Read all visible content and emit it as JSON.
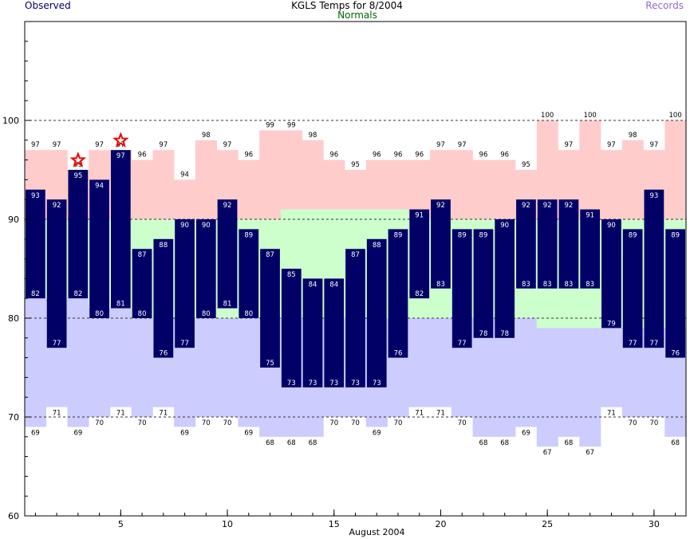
{
  "chart_data": {
    "type": "bar",
    "title": "KGLS Temps for 8/2004",
    "legend": {
      "observed": "Observed",
      "normals": "Normals",
      "records": "Records"
    },
    "xlabel": "August 2004",
    "ylim": [
      60,
      110
    ],
    "xlim": [
      0.5,
      31.5
    ],
    "y_ticks": [
      60,
      70,
      80,
      90,
      100
    ],
    "x_ticks": [
      5,
      10,
      15,
      20,
      25,
      30
    ],
    "dashed_gridlines": [
      70,
      80,
      90,
      100
    ],
    "colors": {
      "observed": "#000066",
      "normal_band": "#ccffcc",
      "record_high": "#ffcccc",
      "record_low": "#ccccff",
      "legend_observed": "#000066",
      "legend_normals": "#006600",
      "legend_records": "#9966cc",
      "record_star": "#ee0000"
    },
    "days": [
      1,
      2,
      3,
      4,
      5,
      6,
      7,
      8,
      9,
      10,
      11,
      12,
      13,
      14,
      15,
      16,
      17,
      18,
      19,
      20,
      21,
      22,
      23,
      24,
      25,
      26,
      27,
      28,
      29,
      30,
      31
    ],
    "series": [
      {
        "name": "observed_high",
        "values": [
          93,
          92,
          95,
          94,
          97,
          87,
          88,
          90,
          90,
          92,
          89,
          87,
          85,
          84,
          84,
          87,
          88,
          89,
          91,
          92,
          89,
          89,
          90,
          92,
          92,
          92,
          91,
          90,
          89,
          93,
          89
        ]
      },
      {
        "name": "observed_low",
        "values": [
          82,
          77,
          82,
          80,
          81,
          80,
          76,
          77,
          80,
          81,
          80,
          75,
          73,
          73,
          73,
          73,
          73,
          76,
          82,
          83,
          77,
          78,
          78,
          83,
          83,
          83,
          83,
          79,
          77,
          77,
          76
        ]
      },
      {
        "name": "normal_high",
        "values": [
          90,
          90,
          90,
          90,
          90,
          90,
          90,
          90,
          90,
          90,
          90,
          90,
          91,
          91,
          91,
          91,
          91,
          91,
          90,
          90,
          90,
          90,
          90,
          90,
          90,
          90,
          90,
          90,
          90,
          90,
          90
        ]
      },
      {
        "name": "normal_low",
        "values": [
          82,
          82,
          82,
          81,
          81,
          80,
          80,
          80,
          80,
          80,
          80,
          80,
          80,
          80,
          80,
          80,
          80,
          80,
          80,
          80,
          80,
          80,
          80,
          80,
          79,
          79,
          79,
          79,
          79,
          79,
          79
        ]
      },
      {
        "name": "record_high",
        "values": [
          97,
          97,
          95,
          97,
          97,
          96,
          97,
          94,
          98,
          97,
          96,
          99,
          99,
          98,
          96,
          95,
          96,
          96,
          96,
          97,
          97,
          96,
          96,
          95,
          100,
          97,
          100,
          97,
          98,
          97,
          100
        ]
      },
      {
        "name": "record_low",
        "values": [
          69,
          71,
          69,
          70,
          71,
          70,
          71,
          69,
          70,
          70,
          69,
          68,
          68,
          68,
          70,
          70,
          69,
          70,
          71,
          71,
          70,
          68,
          68,
          69,
          67,
          68,
          67,
          71,
          70,
          70,
          68
        ]
      }
    ],
    "record_high_stars": [
      3,
      5
    ]
  }
}
